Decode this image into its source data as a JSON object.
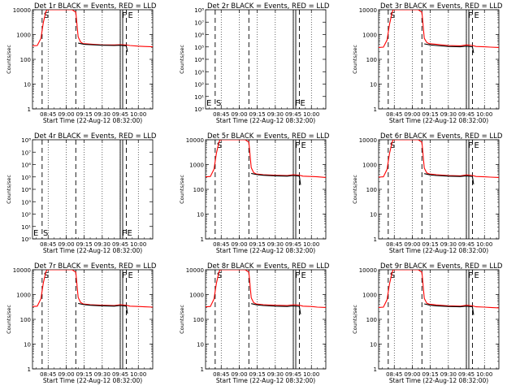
{
  "page": {
    "background": "#ffffff",
    "events_color": "#000000",
    "lld_color": "#ff0000"
  },
  "chart_data": [
    {
      "type": "line",
      "title": "Det 1r BLACK = Events, RED = LLD",
      "xlabel": "Start Time (22-Aug-12 08:32:00)",
      "ylabel": "Counts/sec",
      "yscale": "log",
      "ylim": [
        1,
        10000
      ],
      "yticks": [
        "1",
        "10",
        "100",
        "1000",
        "10000"
      ],
      "xticks": [
        "08:45",
        "09:00",
        "09:15",
        "09:30",
        "09:45",
        "10:00"
      ],
      "markers": [
        {
          "label": "S",
          "style": "dashed"
        },
        {
          "style": "dashed"
        },
        {
          "label": "F",
          "style": "solid"
        },
        {
          "label": "E",
          "style": "dashed"
        }
      ],
      "has_data": true,
      "series": [
        {
          "x": [
            "08:32",
            "08:36",
            "08:39",
            "08:41",
            "08:43",
            "08:44",
            "08:45",
            "08:55",
            "09:05",
            "09:08",
            "09:10",
            "09:12",
            "09:14",
            "09:20",
            "09:30",
            "09:40",
            "09:45",
            "09:50",
            "09:53",
            "10:00",
            "10:05",
            "10:12"
          ],
          "y": [
            350,
            360,
            700,
            3000,
            8000,
            10000,
            10000,
            10000,
            10000,
            8000,
            800,
            500,
            430,
            410,
            380,
            380,
            390,
            380,
            360,
            340,
            330,
            320
          ]
        },
        {
          "x": [
            "09:10",
            "09:15",
            "09:20",
            "09:30",
            "09:40",
            "09:45",
            "09:50",
            "09:51"
          ],
          "y": [
            450,
            400,
            390,
            370,
            360,
            370,
            350,
            200
          ]
        }
      ]
    },
    {
      "type": "line",
      "title": "Det 2r BLACK = Events, RED = LLD",
      "xlabel": "Start Time (22-Aug-12 08:32:00)",
      "ylabel": "Counts/sec",
      "yscale": "log",
      "ylim": [
        1,
        100000000
      ],
      "yticks": [
        "10⁰",
        "10¹",
        "10²",
        "10³",
        "10⁴",
        "10⁵",
        "10⁶",
        "10⁷",
        "10⁸"
      ],
      "xticks": [
        "08:45",
        "09:00",
        "09:15",
        "09:30",
        "09:45",
        "10:00"
      ],
      "markers": [
        {
          "label": "S",
          "style": "dashed"
        },
        {
          "style": "dashed"
        },
        {
          "label": "F",
          "style": "solid"
        },
        {
          "label": "E",
          "style": "dashed"
        }
      ],
      "corner_labels": [
        "E",
        "S",
        "F",
        "E"
      ],
      "has_data": false,
      "series": []
    },
    {
      "type": "line",
      "title": "Det 3r BLACK = Events, RED = LLD",
      "xlabel": "Start Time (22-Aug-12 08:32:00)",
      "ylabel": "Counts/sec",
      "yscale": "log",
      "ylim": [
        1,
        10000
      ],
      "yticks": [
        "1",
        "10",
        "100",
        "1000",
        "10000"
      ],
      "xticks": [
        "08:45",
        "09:00",
        "09:15",
        "09:30",
        "09:45",
        "10:00"
      ],
      "markers": [
        {
          "label": "S",
          "style": "dashed"
        },
        {
          "style": "dashed"
        },
        {
          "label": "F",
          "style": "solid"
        },
        {
          "label": "E",
          "style": "dashed"
        }
      ],
      "has_data": true,
      "series": [
        {
          "x": [
            "08:32",
            "08:36",
            "08:39",
            "08:41",
            "08:43",
            "08:44",
            "08:45",
            "08:55",
            "09:05",
            "09:08",
            "09:10",
            "09:12",
            "09:14",
            "09:20",
            "09:30",
            "09:40",
            "09:45",
            "09:50",
            "09:53",
            "10:00",
            "10:05",
            "10:12"
          ],
          "y": [
            300,
            310,
            600,
            2500,
            7000,
            10000,
            10000,
            10000,
            10000,
            8000,
            700,
            480,
            430,
            400,
            360,
            350,
            380,
            360,
            330,
            320,
            310,
            300
          ]
        },
        {
          "x": [
            "09:10",
            "09:15",
            "09:20",
            "09:30",
            "09:40",
            "09:45",
            "09:50",
            "09:51"
          ],
          "y": [
            420,
            380,
            360,
            330,
            320,
            340,
            320,
            180
          ]
        }
      ]
    },
    {
      "type": "line",
      "title": "Det 4r BLACK = Events, RED = LLD",
      "xlabel": "Start Time (22-Aug-12 08:32:00)",
      "ylabel": "Counts/sec",
      "yscale": "log",
      "ylim": [
        1,
        100000000
      ],
      "yticks": [
        "10⁰",
        "10¹",
        "10²",
        "10³",
        "10⁴",
        "10⁵",
        "10⁶",
        "10⁷",
        "10⁸"
      ],
      "xticks": [
        "08:45",
        "09:00",
        "09:15",
        "09:30",
        "09:45",
        "10:00"
      ],
      "markers": [
        {
          "label": "S",
          "style": "dashed"
        },
        {
          "style": "dashed"
        },
        {
          "label": "F",
          "style": "solid"
        },
        {
          "label": "E",
          "style": "dashed"
        }
      ],
      "corner_labels": [
        "E",
        "S",
        "F",
        "E"
      ],
      "has_data": false,
      "series": []
    },
    {
      "type": "line",
      "title": "Det 5r BLACK = Events, RED = LLD",
      "xlabel": "Start Time (22-Aug-12 08:32:00)",
      "ylabel": "Counts/sec",
      "yscale": "log",
      "ylim": [
        1,
        10000
      ],
      "yticks": [
        "1",
        "10",
        "100",
        "1000",
        "10000"
      ],
      "xticks": [
        "08:45",
        "09:00",
        "09:15",
        "09:30",
        "09:45",
        "10:00"
      ],
      "markers": [
        {
          "label": "S",
          "style": "dashed"
        },
        {
          "style": "dashed"
        },
        {
          "label": "F",
          "style": "solid"
        },
        {
          "label": "E",
          "style": "dashed"
        }
      ],
      "has_data": true,
      "series": [
        {
          "x": [
            "08:32",
            "08:36",
            "08:39",
            "08:41",
            "08:43",
            "08:44",
            "08:45",
            "08:55",
            "09:05",
            "09:08",
            "09:10",
            "09:12",
            "09:14",
            "09:20",
            "09:30",
            "09:40",
            "09:45",
            "09:50",
            "09:53",
            "10:00",
            "10:05",
            "10:12"
          ],
          "y": [
            320,
            330,
            650,
            2800,
            7500,
            10000,
            10000,
            10000,
            10000,
            8000,
            750,
            470,
            420,
            390,
            370,
            360,
            390,
            370,
            340,
            330,
            320,
            300
          ]
        },
        {
          "x": [
            "09:10",
            "09:15",
            "09:20",
            "09:30",
            "09:40",
            "09:45",
            "09:50",
            "09:51"
          ],
          "y": [
            440,
            390,
            370,
            350,
            340,
            360,
            340,
            150
          ]
        }
      ]
    },
    {
      "type": "line",
      "title": "Det 6r BLACK = Events, RED = LLD",
      "xlabel": "Start Time (22-Aug-12 08:32:00)",
      "ylabel": "Counts/sec",
      "yscale": "log",
      "ylim": [
        1,
        10000
      ],
      "yticks": [
        "1",
        "10",
        "100",
        "1000",
        "10000"
      ],
      "xticks": [
        "08:45",
        "09:00",
        "09:15",
        "09:30",
        "09:45",
        "10:00"
      ],
      "markers": [
        {
          "label": "S",
          "style": "dashed"
        },
        {
          "style": "dashed"
        },
        {
          "label": "F",
          "style": "solid"
        },
        {
          "label": "E",
          "style": "dashed"
        }
      ],
      "has_data": true,
      "series": [
        {
          "x": [
            "08:32",
            "08:36",
            "08:39",
            "08:41",
            "08:43",
            "08:44",
            "08:45",
            "08:55",
            "09:05",
            "09:08",
            "09:10",
            "09:12",
            "09:14",
            "09:20",
            "09:30",
            "09:40",
            "09:45",
            "09:50",
            "09:53",
            "10:00",
            "10:05",
            "10:12"
          ],
          "y": [
            310,
            320,
            640,
            2700,
            7200,
            10000,
            10000,
            10000,
            10000,
            8000,
            720,
            460,
            420,
            390,
            360,
            350,
            380,
            360,
            330,
            320,
            310,
            300
          ]
        },
        {
          "x": [
            "09:10",
            "09:15",
            "09:20",
            "09:30",
            "09:40",
            "09:45",
            "09:50",
            "09:51"
          ],
          "y": [
            430,
            380,
            360,
            340,
            330,
            350,
            330,
            160
          ]
        }
      ]
    },
    {
      "type": "line",
      "title": "Det 7r BLACK = Events, RED = LLD",
      "xlabel": "Start Time (22-Aug-12 08:32:00)",
      "ylabel": "Counts/sec",
      "yscale": "log",
      "ylim": [
        1,
        10000
      ],
      "yticks": [
        "1",
        "10",
        "100",
        "1000",
        "10000"
      ],
      "xticks": [
        "08:45",
        "09:00",
        "09:15",
        "09:30",
        "09:45",
        "10:00"
      ],
      "markers": [
        {
          "label": "S",
          "style": "dashed"
        },
        {
          "style": "dashed"
        },
        {
          "label": "F",
          "style": "solid"
        },
        {
          "label": "E",
          "style": "dashed"
        }
      ],
      "has_data": true,
      "series": [
        {
          "x": [
            "08:32",
            "08:36",
            "08:39",
            "08:41",
            "08:43",
            "08:44",
            "08:45",
            "08:55",
            "09:05",
            "09:08",
            "09:10",
            "09:12",
            "09:14",
            "09:20",
            "09:30",
            "09:40",
            "09:45",
            "09:50",
            "09:53",
            "10:00",
            "10:05",
            "10:12"
          ],
          "y": [
            330,
            340,
            680,
            2900,
            7800,
            10000,
            10000,
            10000,
            10000,
            8000,
            760,
            480,
            420,
            390,
            370,
            360,
            390,
            370,
            340,
            330,
            320,
            310
          ]
        },
        {
          "x": [
            "09:10",
            "09:15",
            "09:20",
            "09:30",
            "09:40",
            "09:45",
            "09:50",
            "09:51"
          ],
          "y": [
            440,
            390,
            370,
            350,
            340,
            360,
            340,
            170
          ]
        }
      ]
    },
    {
      "type": "line",
      "title": "Det 8r BLACK = Events, RED = LLD",
      "xlabel": "Start Time (22-Aug-12 08:32:00)",
      "ylabel": "Counts/sec",
      "yscale": "log",
      "ylim": [
        1,
        10000
      ],
      "yticks": [
        "1",
        "10",
        "100",
        "1000",
        "10000"
      ],
      "xticks": [
        "08:45",
        "09:00",
        "09:15",
        "09:30",
        "09:45",
        "10:00"
      ],
      "markers": [
        {
          "label": "S",
          "style": "dashed"
        },
        {
          "style": "dashed"
        },
        {
          "label": "F",
          "style": "solid"
        },
        {
          "label": "E",
          "style": "dashed"
        }
      ],
      "has_data": true,
      "series": [
        {
          "x": [
            "08:32",
            "08:36",
            "08:39",
            "08:41",
            "08:43",
            "08:44",
            "08:45",
            "08:55",
            "09:05",
            "09:08",
            "09:10",
            "09:12",
            "09:14",
            "09:20",
            "09:30",
            "09:40",
            "09:45",
            "09:50",
            "09:53",
            "10:00",
            "10:05",
            "10:12"
          ],
          "y": [
            320,
            330,
            660,
            2800,
            7600,
            10000,
            10000,
            10000,
            10000,
            8000,
            740,
            470,
            420,
            390,
            370,
            360,
            390,
            370,
            340,
            330,
            310,
            300
          ]
        },
        {
          "x": [
            "09:10",
            "09:15",
            "09:20",
            "09:30",
            "09:40",
            "09:45",
            "09:50",
            "09:51"
          ],
          "y": [
            430,
            380,
            360,
            340,
            330,
            350,
            330,
            160
          ]
        }
      ]
    },
    {
      "type": "line",
      "title": "Det 9r BLACK = Events, RED = LLD",
      "xlabel": "Start Time (22-Aug-12 08:32:00)",
      "ylabel": "Counts/sec",
      "yscale": "log",
      "ylim": [
        1,
        10000
      ],
      "yticks": [
        "1",
        "10",
        "100",
        "1000",
        "10000"
      ],
      "xticks": [
        "08:45",
        "09:00",
        "09:15",
        "09:30",
        "09:45",
        "10:00"
      ],
      "markers": [
        {
          "label": "S",
          "style": "dashed"
        },
        {
          "style": "dashed"
        },
        {
          "label": "F",
          "style": "solid"
        },
        {
          "label": "E",
          "style": "dashed"
        }
      ],
      "has_data": true,
      "series": [
        {
          "x": [
            "08:32",
            "08:36",
            "08:39",
            "08:41",
            "08:43",
            "08:44",
            "08:45",
            "08:55",
            "09:05",
            "09:08",
            "09:10",
            "09:12",
            "09:14",
            "09:20",
            "09:30",
            "09:40",
            "09:45",
            "09:50",
            "09:53",
            "10:00",
            "10:05",
            "10:12"
          ],
          "y": [
            300,
            310,
            620,
            2600,
            7000,
            10000,
            10000,
            10000,
            10000,
            8000,
            700,
            450,
            410,
            380,
            350,
            340,
            370,
            350,
            320,
            310,
            300,
            290
          ]
        },
        {
          "x": [
            "09:10",
            "09:15",
            "09:20",
            "09:30",
            "09:40",
            "09:45",
            "09:50",
            "09:51"
          ],
          "y": [
            420,
            370,
            350,
            330,
            320,
            340,
            320,
            150
          ]
        }
      ]
    }
  ]
}
